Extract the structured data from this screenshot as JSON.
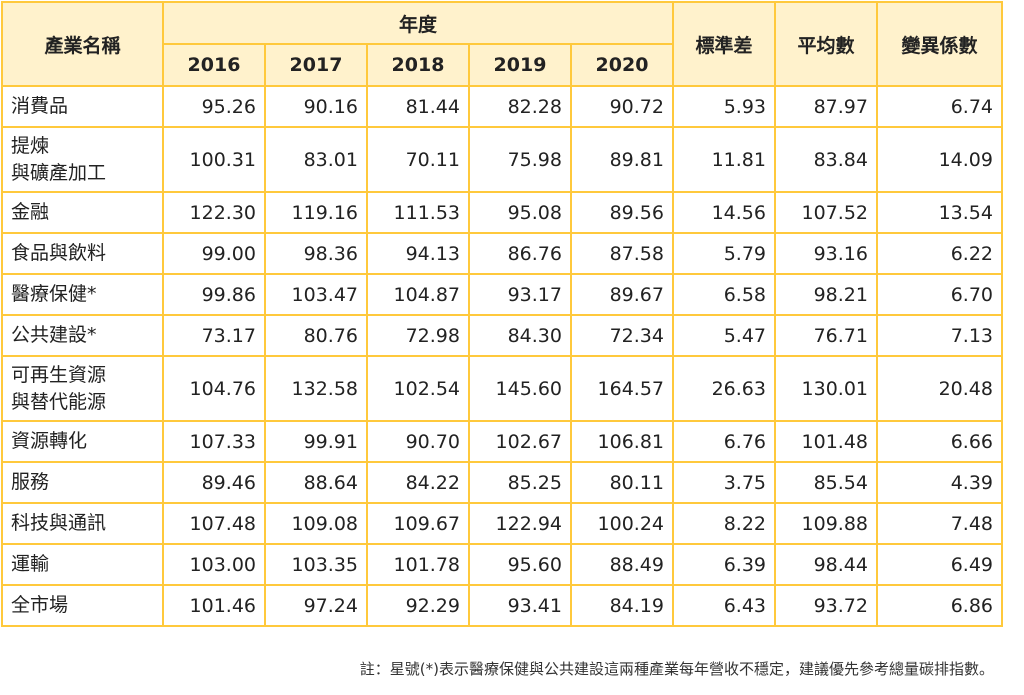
{
  "headers": {
    "industry": "產業名稱",
    "year_group": "年度",
    "years": [
      "2016",
      "2017",
      "2018",
      "2019",
      "2020"
    ],
    "std": "標準差",
    "mean": "平均數",
    "cv": "變異係數"
  },
  "rows": [
    {
      "name": [
        "消費品"
      ],
      "values": [
        "95.26",
        "90.16",
        "81.44",
        "82.28",
        "90.72",
        "5.93",
        "87.97",
        "6.74"
      ]
    },
    {
      "name": [
        "提煉",
        "與礦產加工"
      ],
      "values": [
        "100.31",
        "83.01",
        "70.11",
        "75.98",
        "89.81",
        "11.81",
        "83.84",
        "14.09"
      ]
    },
    {
      "name": [
        "金融"
      ],
      "values": [
        "122.30",
        "119.16",
        "111.53",
        "95.08",
        "89.56",
        "14.56",
        "107.52",
        "13.54"
      ]
    },
    {
      "name": [
        "食品與飲料"
      ],
      "values": [
        "99.00",
        "98.36",
        "94.13",
        "86.76",
        "87.58",
        "5.79",
        "93.16",
        "6.22"
      ]
    },
    {
      "name": [
        "醫療保健*"
      ],
      "values": [
        "99.86",
        "103.47",
        "104.87",
        "93.17",
        "89.67",
        "6.58",
        "98.21",
        "6.70"
      ]
    },
    {
      "name": [
        "公共建設*"
      ],
      "values": [
        "73.17",
        "80.76",
        "72.98",
        "84.30",
        "72.34",
        "5.47",
        "76.71",
        "7.13"
      ]
    },
    {
      "name": [
        "可再生資源",
        "與替代能源"
      ],
      "values": [
        "104.76",
        "132.58",
        "102.54",
        "145.60",
        "164.57",
        "26.63",
        "130.01",
        "20.48"
      ]
    },
    {
      "name": [
        "資源轉化"
      ],
      "values": [
        "107.33",
        "99.91",
        "90.70",
        "102.67",
        "106.81",
        "6.76",
        "101.48",
        "6.66"
      ]
    },
    {
      "name": [
        "服務"
      ],
      "values": [
        "89.46",
        "88.64",
        "84.22",
        "85.25",
        "80.11",
        "3.75",
        "85.54",
        "4.39"
      ]
    },
    {
      "name": [
        "科技與通訊"
      ],
      "values": [
        "107.48",
        "109.08",
        "109.67",
        "122.94",
        "100.24",
        "8.22",
        "109.88",
        "7.48"
      ]
    },
    {
      "name": [
        "運輸"
      ],
      "values": [
        "103.00",
        "103.35",
        "101.78",
        "95.60",
        "88.49",
        "6.39",
        "98.44",
        "6.49"
      ]
    },
    {
      "name": [
        "全市場"
      ],
      "values": [
        "101.46",
        "97.24",
        "92.29",
        "93.41",
        "84.19",
        "6.43",
        "93.72",
        "6.86"
      ]
    }
  ],
  "note": "註：星號(*)表示醫療保健與公共建設這兩種產業每年營收不穩定，建議優先參考總量碳排指數。",
  "colors": {
    "border": "#FFC93C",
    "header_bg": "#FFF2CC"
  }
}
